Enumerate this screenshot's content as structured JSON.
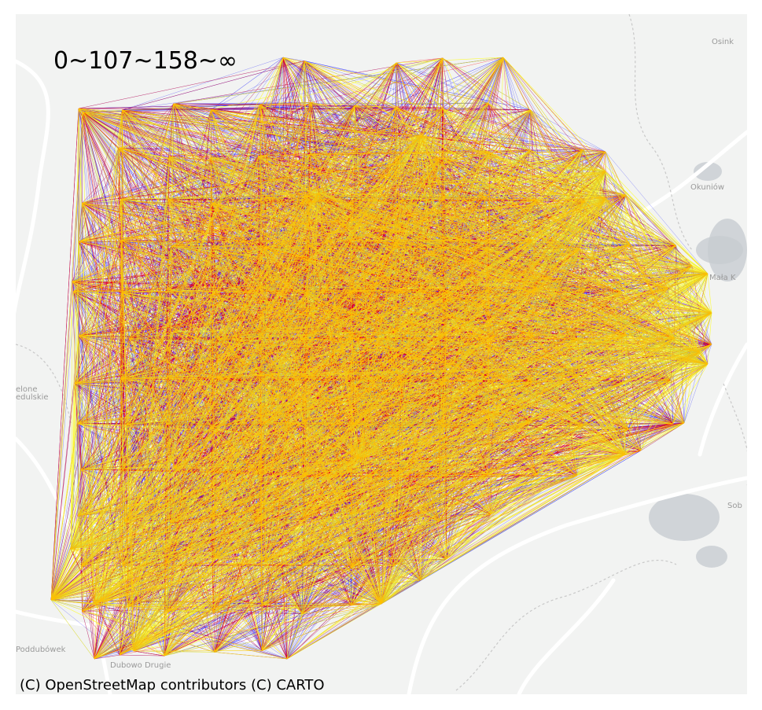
{
  "legend": {
    "text": "0~107~158~∞",
    "bins": [
      "0",
      "107",
      "158",
      "∞"
    ],
    "colors": [
      "#0000ff",
      "#ff0000",
      "#ffff00"
    ]
  },
  "attribution": "(C) OpenStreetMap contributors (C) CARTO",
  "basemap": {
    "style": "light-gray",
    "background": "#f2f3f2",
    "road_color": "#ffffff",
    "water_color": "#c7ccd1",
    "boundary_color": "#c8c8c8",
    "places": [
      {
        "id": "osink",
        "name": "Osink"
      },
      {
        "id": "okuniow",
        "name": "Okuniów"
      },
      {
        "id": "mala",
        "name": "Mała K"
      },
      {
        "id": "zielone1",
        "name": "elone"
      },
      {
        "id": "zielone2",
        "name": "edulskie"
      },
      {
        "id": "sob",
        "name": "Sob"
      },
      {
        "id": "poddubowek",
        "name": "Poddubówek"
      },
      {
        "id": "dubowo",
        "name": "Dubowo Drugie"
      }
    ]
  }
}
